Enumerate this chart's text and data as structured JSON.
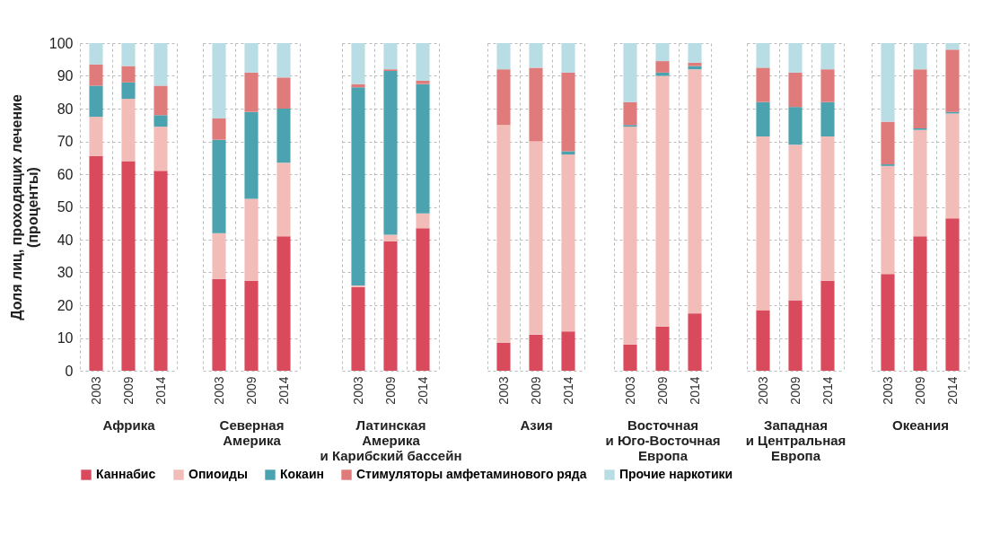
{
  "chart_data": [
    {
      "type": "bar",
      "stacked": true,
      "xlabel": "Африка",
      "ylabel": "Доля лиц, проходящих лечение\n(проценты)",
      "categories": [
        "2003",
        "2009",
        "2014"
      ],
      "ylim": [
        0,
        100
      ],
      "yticks": [
        0,
        10,
        20,
        30,
        40,
        50,
        60,
        70,
        80,
        90,
        100
      ],
      "grid": true,
      "legend": "bottom",
      "series": [
        {
          "name": "Каннабис",
          "color": "#d94a5c",
          "values": [
            65.5,
            64,
            61
          ]
        },
        {
          "name": "Опиоиды",
          "color": "#f2bcb8",
          "values": [
            12,
            19,
            13.5
          ]
        },
        {
          "name": "Кокаин",
          "color": "#4aa3ae",
          "values": [
            9.5,
            5,
            3.5
          ]
        },
        {
          "name": "Стимуляторы амфетаминового ряда",
          "color": "#e07b7b",
          "values": [
            6.5,
            5,
            9
          ]
        },
        {
          "name": "Прочие наркотики",
          "color": "#b9dde5",
          "values": [
            6.5,
            7,
            13
          ]
        }
      ]
    },
    {
      "type": "bar",
      "stacked": true,
      "xlabel": "Северная\nАмерика",
      "categories": [
        "2003",
        "2009",
        "2014"
      ],
      "ylim": [
        0,
        100
      ],
      "yticks": [
        0,
        10,
        20,
        30,
        40,
        50,
        60,
        70,
        80,
        90,
        100
      ],
      "grid": true,
      "legend": "bottom",
      "tick_labels": "x",
      "series": [
        {
          "name": "Каннабис",
          "color": "#d94a5c",
          "values": [
            28,
            27.5,
            41
          ]
        },
        {
          "name": "Опиоиды",
          "color": "#f2bcb8",
          "values": [
            14,
            25,
            22.5
          ]
        },
        {
          "name": "Кокаин",
          "color": "#4aa3ae",
          "values": [
            28.5,
            26.5,
            16.5
          ]
        },
        {
          "name": "Стимуляторы амфетаминового ряда",
          "color": "#e07b7b",
          "values": [
            6.5,
            12,
            9.5
          ]
        },
        {
          "name": "Прочие наркотики",
          "color": "#b9dde5",
          "values": [
            23,
            9,
            10.5
          ]
        }
      ]
    },
    {
      "type": "bar",
      "stacked": true,
      "xlabel": "Латинская\nАмерика\nи Карибский бассейн",
      "categories": [
        "2003",
        "2009",
        "2014"
      ],
      "ylim": [
        0,
        100
      ],
      "yticks": [
        0,
        10,
        20,
        30,
        40,
        50,
        60,
        70,
        80,
        90,
        100
      ],
      "grid": true,
      "legend": "bottom",
      "tick_labels": "x",
      "series": [
        {
          "name": "Каннабис",
          "color": "#d94a5c",
          "values": [
            25.5,
            39.5,
            43.5
          ]
        },
        {
          "name": "Опиоиды",
          "color": "#f2bcb8",
          "values": [
            0.5,
            2,
            4.5
          ]
        },
        {
          "name": "Кокаин",
          "color": "#4aa3ae",
          "values": [
            60.5,
            50,
            39.5
          ]
        },
        {
          "name": "Стимуляторы амфетаминового ряда",
          "color": "#e07b7b",
          "values": [
            1,
            0.5,
            1
          ]
        },
        {
          "name": "Прочие наркотики",
          "color": "#b9dde5",
          "values": [
            12.5,
            8,
            11.5
          ]
        }
      ]
    },
    {
      "type": "bar",
      "stacked": true,
      "xlabel": "Азия",
      "categories": [
        "2003",
        "2009",
        "2014"
      ],
      "ylim": [
        0,
        100
      ],
      "yticks": [
        0,
        10,
        20,
        30,
        40,
        50,
        60,
        70,
        80,
        90,
        100
      ],
      "grid": true,
      "legend": "bottom",
      "tick_labels": "x",
      "series": [
        {
          "name": "Каннабис",
          "color": "#d94a5c",
          "values": [
            8.5,
            11,
            12
          ]
        },
        {
          "name": "Опиоиды",
          "color": "#f2bcb8",
          "values": [
            66.5,
            59,
            54
          ]
        },
        {
          "name": "Кокаин",
          "color": "#4aa3ae",
          "values": [
            0,
            0,
            1
          ]
        },
        {
          "name": "Стимуляторы амфетаминового ряда",
          "color": "#e07b7b",
          "values": [
            17,
            22.5,
            24
          ]
        },
        {
          "name": "Прочие наркотики",
          "color": "#b9dde5",
          "values": [
            8,
            7.5,
            9
          ]
        }
      ]
    },
    {
      "type": "bar",
      "stacked": true,
      "xlabel": "Восточная\nи Юго-Восточная\nЕвропа",
      "categories": [
        "2003",
        "2009",
        "2014"
      ],
      "ylim": [
        0,
        100
      ],
      "yticks": [
        0,
        10,
        20,
        30,
        40,
        50,
        60,
        70,
        80,
        90,
        100
      ],
      "grid": true,
      "legend": "bottom",
      "tick_labels": "x",
      "series": [
        {
          "name": "Каннабис",
          "color": "#d94a5c",
          "values": [
            8,
            13.5,
            17.5
          ]
        },
        {
          "name": "Опиоиды",
          "color": "#f2bcb8",
          "values": [
            66.5,
            76.5,
            74.5
          ]
        },
        {
          "name": "Кокаин",
          "color": "#4aa3ae",
          "values": [
            0.5,
            1,
            1
          ]
        },
        {
          "name": "Стимуляторы амфетаминового ряда",
          "color": "#e07b7b",
          "values": [
            7,
            3.5,
            1
          ]
        },
        {
          "name": "Прочие наркотики",
          "color": "#b9dde5",
          "values": [
            18,
            5.5,
            6
          ]
        }
      ]
    },
    {
      "type": "bar",
      "stacked": true,
      "xlabel": "Западная\nи Центральная\nЕвропа",
      "categories": [
        "2003",
        "2009",
        "2014"
      ],
      "ylim": [
        0,
        100
      ],
      "yticks": [
        0,
        10,
        20,
        30,
        40,
        50,
        60,
        70,
        80,
        90,
        100
      ],
      "grid": true,
      "legend": "bottom",
      "tick_labels": "x",
      "series": [
        {
          "name": "Каннабис",
          "color": "#d94a5c",
          "values": [
            18.5,
            21.5,
            27.5
          ]
        },
        {
          "name": "Опиоиды",
          "color": "#f2bcb8",
          "values": [
            53,
            47.5,
            44
          ]
        },
        {
          "name": "Кокаин",
          "color": "#4aa3ae",
          "values": [
            10.5,
            11.5,
            10.5
          ]
        },
        {
          "name": "Стимуляторы амфетаминового ряда",
          "color": "#e07b7b",
          "values": [
            10.5,
            10.5,
            10
          ]
        },
        {
          "name": "Прочие наркотики",
          "color": "#b9dde5",
          "values": [
            7.5,
            9,
            8
          ]
        }
      ]
    },
    {
      "type": "bar",
      "stacked": true,
      "xlabel": "Океания",
      "categories": [
        "2003",
        "2009",
        "2014"
      ],
      "ylim": [
        0,
        100
      ],
      "yticks": [
        0,
        10,
        20,
        30,
        40,
        50,
        60,
        70,
        80,
        90,
        100
      ],
      "grid": true,
      "legend": "bottom",
      "tick_labels": "x",
      "series": [
        {
          "name": "Каннабис",
          "color": "#d94a5c",
          "values": [
            29.5,
            41,
            46.5
          ]
        },
        {
          "name": "Опиоиды",
          "color": "#f2bcb8",
          "values": [
            33,
            32.5,
            32
          ]
        },
        {
          "name": "Кокаин",
          "color": "#4aa3ae",
          "values": [
            0.5,
            0.5,
            0.5
          ]
        },
        {
          "name": "Стимуляторы амфетаминового ряда",
          "color": "#e07b7b",
          "values": [
            13,
            18,
            19
          ]
        },
        {
          "name": "Прочие наркотики",
          "color": "#b9dde5",
          "values": [
            24,
            8,
            2
          ]
        }
      ]
    }
  ]
}
